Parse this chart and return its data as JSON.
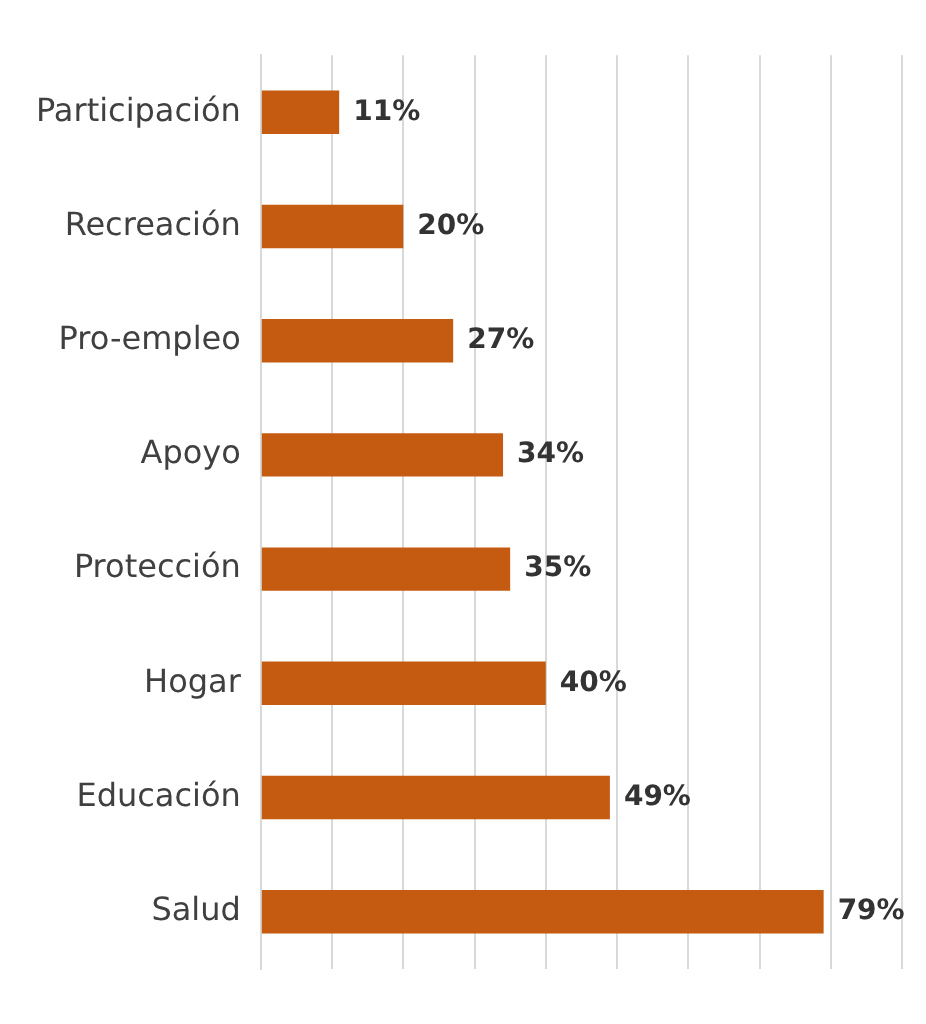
{
  "chart_data": {
    "type": "bar",
    "orientation": "horizontal",
    "categories": [
      "Participación",
      "Recreación",
      "Pro-empleo",
      "Apoyo",
      "Protección",
      "Hogar",
      "Educación",
      "Salud"
    ],
    "values": [
      11,
      20,
      27,
      34,
      35,
      40,
      49,
      79
    ],
    "value_labels": [
      "11%",
      "20%",
      "27%",
      "34%",
      "35%",
      "40%",
      "49%",
      "79%"
    ],
    "color": "#c55a11",
    "xlim": [
      0,
      90
    ],
    "tick_labels": "y",
    "grid": "x",
    "legend": false
  }
}
